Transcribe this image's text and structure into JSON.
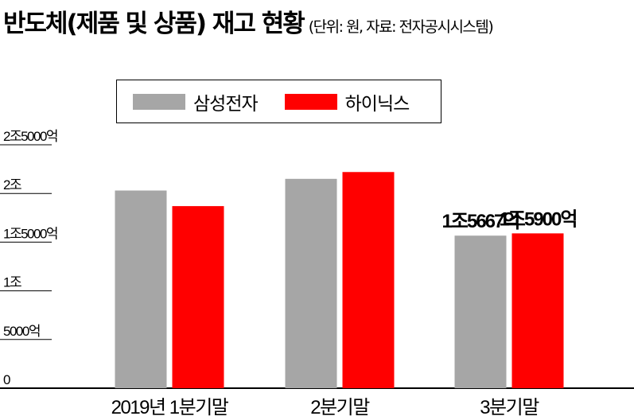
{
  "title": "반도체(제품 및 상품) 재고 현황",
  "subtitle": "(단위: 원, 자료: 전자공시시스템)",
  "chart_data": {
    "type": "bar",
    "title": "반도체(제품 및 상품) 재고 현황",
    "categories": [
      "2019년 1분기말",
      "2분기말",
      "3분기말"
    ],
    "series": [
      {
        "name": "삼성전자",
        "color": "#a6a6a6",
        "values": [
          20300,
          21500,
          15667
        ]
      },
      {
        "name": "하이닉스",
        "color": "#ff0000",
        "values": [
          18700,
          22200,
          15900
        ]
      }
    ],
    "value_unit": "억 원",
    "ylim": [
      0,
      25000
    ],
    "yticks": [
      0,
      5000,
      10000,
      15000,
      20000,
      25000
    ],
    "ytick_labels": [
      "0",
      "5000억",
      "1조",
      "1조5000억",
      "2조",
      "2조5000억"
    ],
    "data_labels": [
      null,
      null,
      null,
      null,
      "1조5667억",
      "1조5900억"
    ],
    "legend": "top",
    "grid": false
  }
}
